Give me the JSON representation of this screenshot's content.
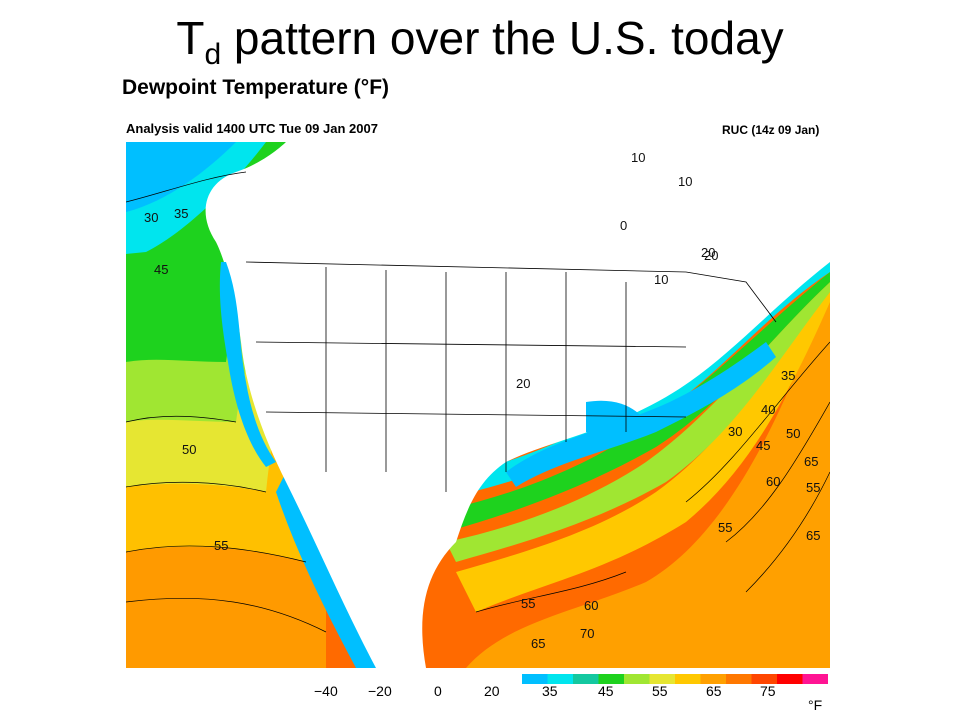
{
  "slide": {
    "title_main": "T",
    "title_sub": "d",
    "title_rest": " pattern over the U.S. today"
  },
  "map": {
    "title": "Dewpoint Temperature (°F)",
    "valid": "Analysis valid 1400 UTC Tue 09 Jan 2007",
    "model": "RUC (14z 09 Jan)",
    "contour_labels": [
      "10",
      "10",
      "20",
      "0",
      "20",
      "10",
      "30",
      "35",
      "45",
      "50",
      "55",
      "55",
      "55",
      "60",
      "65",
      "70",
      "20",
      "35",
      "40",
      "50",
      "45",
      "30",
      "60",
      "65",
      "65",
      "55"
    ]
  },
  "legend": {
    "ticks": [
      "−40",
      "−20",
      "0",
      "20",
      "35",
      "45",
      "55",
      "65",
      "75"
    ],
    "unit": "°F",
    "colors": [
      "#00bfff",
      "#00e5ee",
      "#14c8a0",
      "#1ed21e",
      "#a0e632",
      "#e6e632",
      "#ffc800",
      "#ffa000",
      "#ff7800",
      "#ff4600",
      "#ff0000",
      "#ff1493"
    ]
  }
}
